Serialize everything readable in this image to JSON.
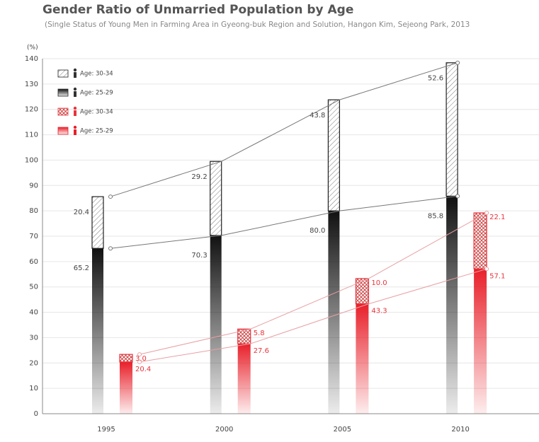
{
  "chart_data": {
    "type": "bar",
    "title": "Gender Ratio of Unmarried Population by Age",
    "subtitle": "(Single Status of Young Men in Farming Area in Gyeong-buk Region and Solution, Hangon Kim, Sejeong Park, 2013",
    "y_label": "(%)",
    "categories": [
      "1995",
      "2000",
      "2005",
      "2010"
    ],
    "series": [
      {
        "name": "Age: 30-34",
        "color": "#555555",
        "pattern": "hatch",
        "values": [
          20.4,
          29.2,
          43.8,
          52.6
        ],
        "value_labels": [
          "20.4",
          "29.2",
          "43.8",
          "52.6"
        ]
      },
      {
        "name": "Age: 25-29",
        "color": "#111111",
        "pattern": "gradient",
        "values": [
          65.2,
          70.3,
          80.0,
          85.8
        ],
        "value_labels": [
          "65.2",
          "70.3",
          "80.0",
          "85.8"
        ]
      },
      {
        "name": "Age: 30-34",
        "color": "#e8343c",
        "pattern": "crosshatch",
        "values": [
          3.0,
          5.8,
          10.0,
          22.1
        ],
        "value_labels": [
          "3.0",
          "5.8",
          "10.0",
          "22.1"
        ]
      },
      {
        "name": "Age: 25-29",
        "color": "#e8202a",
        "pattern": "gradient",
        "values": [
          20.4,
          27.6,
          43.3,
          57.1
        ],
        "value_labels": [
          "20.4",
          "27.6",
          "43.3",
          "57.1"
        ]
      }
    ],
    "ylim": [
      0,
      140
    ],
    "yticks": [
      0,
      10,
      20,
      30,
      40,
      50,
      60,
      70,
      80,
      90,
      100,
      110,
      120,
      130,
      140
    ],
    "grid": true
  }
}
